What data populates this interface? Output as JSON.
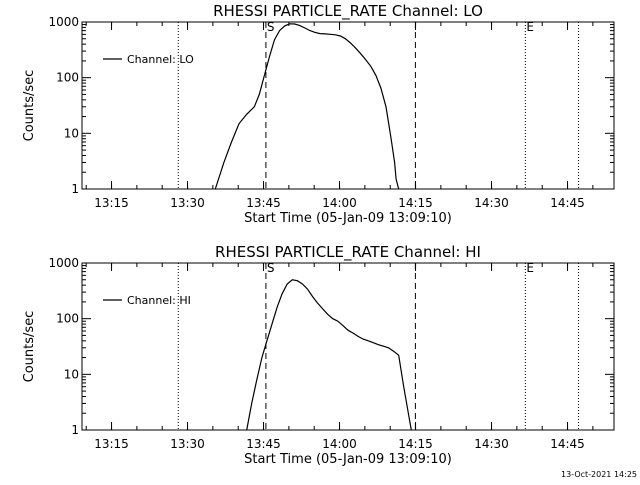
{
  "chart_data": [
    {
      "type": "line",
      "title": "RHESSI PARTICLE_RATE Channel: LO",
      "xlabel": "Start Time (05-Jan-09 13:09:10)",
      "ylabel": "Counts/sec",
      "yscale": "log",
      "ylim": [
        1,
        1000
      ],
      "yticks": [
        "1",
        "10",
        "100",
        "1000"
      ],
      "xlim": [
        "13:09:10",
        "14:54:10"
      ],
      "xticks": [
        "13:15",
        "13:30",
        "13:45",
        "14:00",
        "14:15",
        "14:30",
        "14:45"
      ],
      "xtick_minutes": [
        5.83,
        20.83,
        35.83,
        50.83,
        65.83,
        80.83,
        95.83
      ],
      "grid": false,
      "legend": "top-left",
      "series": [
        {
          "name": "Channel: LO",
          "x_minutes": [
            26.3,
            28,
            29.5,
            31,
            32.5,
            34,
            35,
            36,
            37,
            38,
            39,
            40,
            41,
            42,
            43,
            44,
            45,
            46,
            47,
            48,
            49,
            50,
            51,
            52,
            53,
            54,
            55,
            56,
            57,
            58,
            59,
            60,
            61,
            61.7,
            62,
            62.5
          ],
          "values": [
            1,
            3,
            7,
            15,
            22,
            30,
            50,
            110,
            240,
            480,
            700,
            850,
            930,
            920,
            860,
            780,
            700,
            650,
            620,
            610,
            600,
            590,
            560,
            500,
            420,
            340,
            270,
            210,
            160,
            110,
            65,
            30,
            8,
            3,
            1.5,
            1
          ]
        }
      ],
      "markers": {
        "dotted_minutes": [
          19,
          87.5,
          98
        ],
        "dashed_minutes": [
          36.3,
          65.8
        ],
        "labels": [
          {
            "text": "S",
            "minute": 36.3
          },
          {
            "text": "E",
            "minute": 87.5
          }
        ]
      }
    },
    {
      "type": "line",
      "title": "RHESSI PARTICLE_RATE Channel: HI",
      "xlabel": "Start Time (05-Jan-09 13:09:10)",
      "ylabel": "Counts/sec",
      "yscale": "log",
      "ylim": [
        1,
        1000
      ],
      "yticks": [
        "1",
        "10",
        "100",
        "1000"
      ],
      "xlim": [
        "13:09:10",
        "14:54:10"
      ],
      "xticks": [
        "13:15",
        "13:30",
        "13:45",
        "14:00",
        "14:15",
        "14:30",
        "14:45"
      ],
      "xtick_minutes": [
        5.83,
        20.83,
        35.83,
        50.83,
        65.83,
        80.83,
        95.83
      ],
      "grid": false,
      "legend": "top-left",
      "series": [
        {
          "name": "Channel: HI",
          "x_minutes": [
            32.5,
            33.5,
            34.5,
            35.5,
            36.5,
            37.5,
            38.5,
            39.5,
            40.5,
            41.5,
            42.5,
            43.5,
            44.5,
            45.5,
            46.5,
            47.5,
            48.5,
            49.5,
            50.5,
            51.5,
            52.5,
            53.5,
            54.5,
            55.5,
            56.5,
            57.5,
            58.5,
            59.5,
            60.5,
            61.5,
            62.5,
            63.5,
            64.5,
            65.0
          ],
          "values": [
            1,
            3,
            8,
            20,
            40,
            80,
            160,
            280,
            420,
            500,
            480,
            420,
            340,
            250,
            190,
            150,
            120,
            100,
            90,
            75,
            62,
            55,
            48,
            43,
            40,
            37,
            34,
            32,
            30,
            26,
            22,
            6,
            1.8,
            1
          ]
        }
      ],
      "markers": {
        "dotted_minutes": [
          19,
          87.5,
          98
        ],
        "dashed_minutes": [
          36.3,
          65.8
        ],
        "labels": [
          {
            "text": "S",
            "minute": 36.3
          },
          {
            "text": "E",
            "minute": 87.5
          }
        ]
      }
    }
  ],
  "footer": {
    "timestamp": "13-Oct-2021 14:25"
  }
}
